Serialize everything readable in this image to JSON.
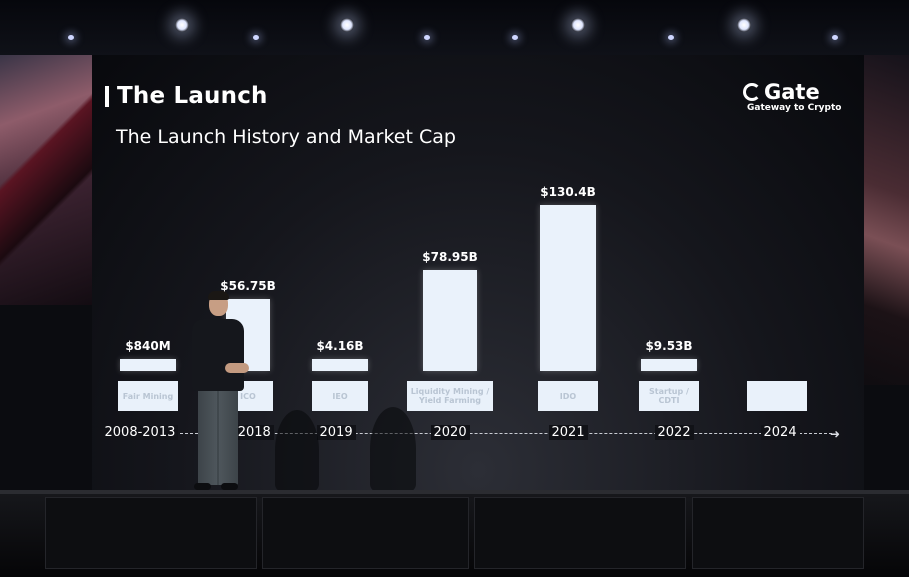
{
  "slide": {
    "title": "The Launch",
    "subtitle": "The Launch History and Market Cap",
    "logo": {
      "name": "Gate",
      "tagline": "Gateway to Crypto",
      "icon": "gate-logo-icon"
    }
  },
  "chart_data": {
    "type": "bar",
    "categories": [
      "2008-2013",
      "2017-2018",
      "2019",
      "2020",
      "2021",
      "2022",
      "2024"
    ],
    "values": [
      0.84,
      56.75,
      4.16,
      78.95,
      130.4,
      9.53,
      null
    ],
    "value_labels": [
      "$840M",
      "$56.75B",
      "$4.16B",
      "$78.95B",
      "$130.4B",
      "$9.53B",
      ""
    ],
    "methods": [
      "Fair Mining",
      "ICO",
      "IEO",
      "Liquidity Mining / Yield Farming",
      "IDO",
      "Startup / CDTI",
      ""
    ],
    "years_visible": [
      "2008-2013",
      "-2018",
      "2019",
      "2020",
      "2021",
      "2022",
      "2024"
    ],
    "title": "The Launch History and Market Cap",
    "xlabel": "",
    "ylabel": "",
    "legend": "none",
    "grid": false,
    "bar_color": "#eaf2fb"
  }
}
